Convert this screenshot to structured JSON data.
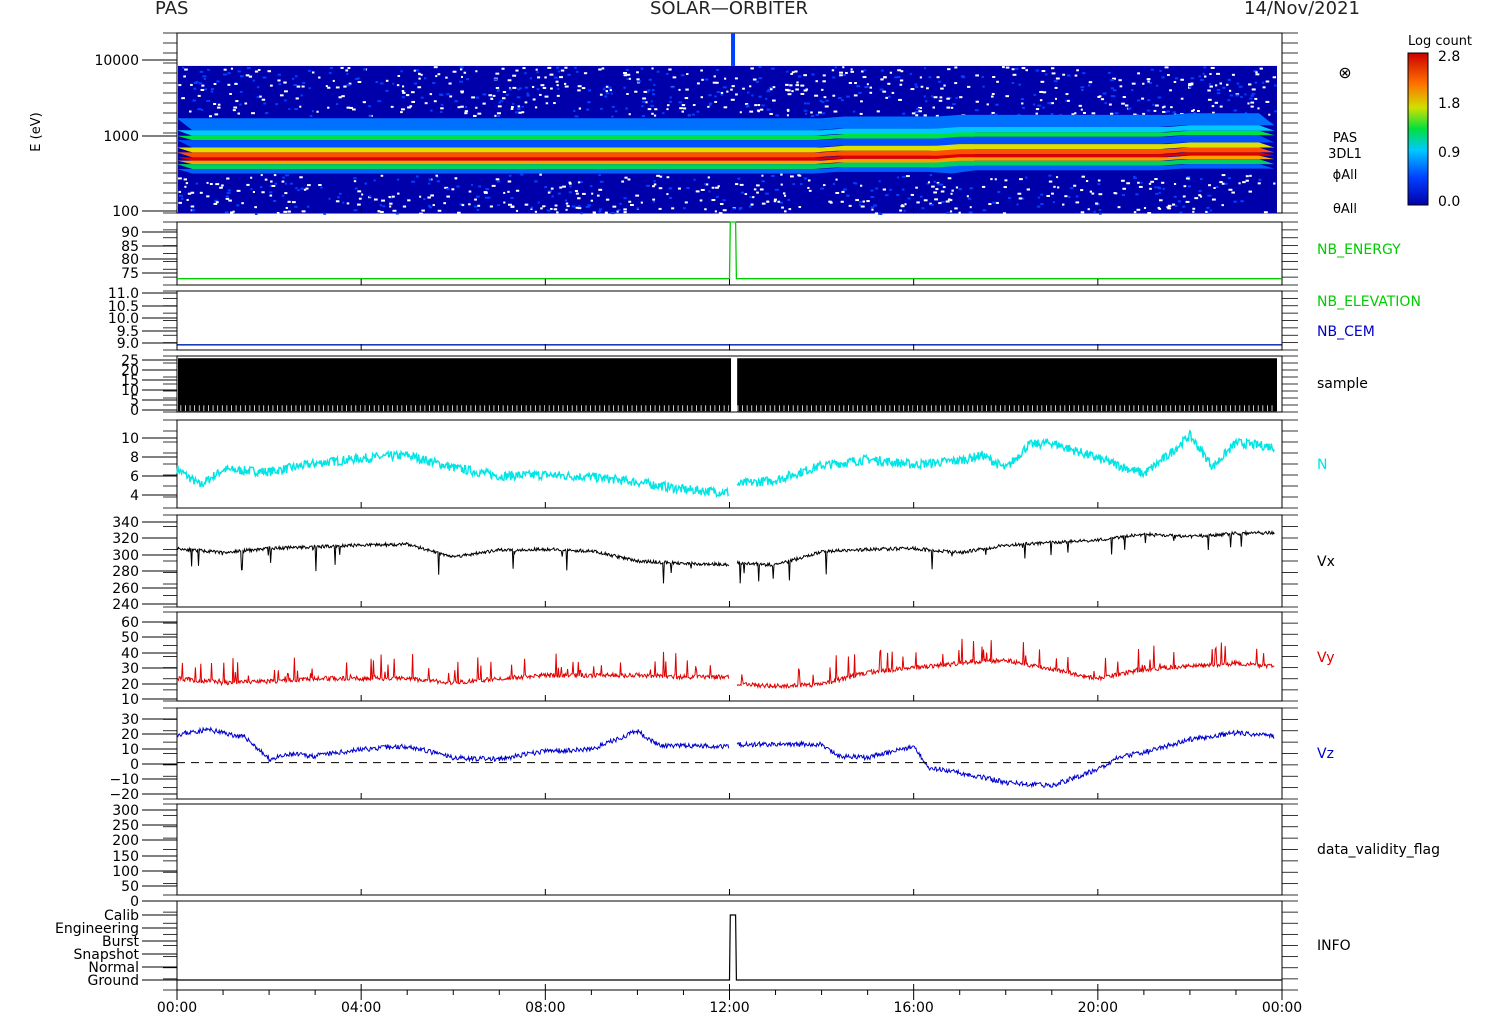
{
  "header": {
    "instrument": "PAS",
    "mission": "SOLAR—ORBITER",
    "date": "14/Nov/2021"
  },
  "colorbar": {
    "title": "Log count",
    "ticks": [
      "2.8",
      "1.8",
      "0.9",
      "0.0"
    ],
    "range": [
      0.0,
      2.8
    ]
  },
  "chart_data": [
    {
      "type": "heatmap",
      "ylabel": "E (eV)",
      "yscale": "log",
      "ylim": [
        100,
        15000
      ],
      "yticks": [
        "10000",
        "1000",
        "100"
      ],
      "labels": [
        "PAS",
        "3DL1",
        "ϕAll",
        "θAll"
      ],
      "symbol": "⊗",
      "note": "energy spectrogram; dense band around 400–1000 eV peaking near 500 eV"
    },
    {
      "type": "line",
      "ylim": [
        72,
        92
      ],
      "yticks": [
        "90",
        "85",
        "80",
        "75"
      ],
      "series": [
        {
          "name": "NB_ENERGY",
          "color": "#00cc00",
          "x": [
            "00:00",
            "12:00",
            "12:01",
            "12:08",
            "12:09",
            "24:00"
          ],
          "values": [
            74,
            74,
            92,
            92,
            74,
            74
          ]
        }
      ]
    },
    {
      "type": "line",
      "ylim": [
        8.8,
        11.1
      ],
      "yticks": [
        "11.0",
        "10.5",
        "10.0",
        "9.5",
        "9.0"
      ],
      "series": [
        {
          "name": "NB_ELEVATION",
          "color": "#00cc00",
          "x": [
            "00:00",
            "24:00"
          ],
          "values": [
            9.0,
            9.0
          ]
        },
        {
          "name": "NB_CEM",
          "color": "#0000cc",
          "x": [
            "00:00",
            "24:00"
          ],
          "values": [
            9.0,
            9.0
          ]
        }
      ]
    },
    {
      "type": "line",
      "ylim": [
        0,
        25
      ],
      "yticks": [
        "25",
        "20",
        "15",
        "10",
        "5",
        "0"
      ],
      "series": [
        {
          "name": "sample",
          "color": "#000000",
          "note": "dense oscillation between 0 and 24, gap at about 12:00–12:08",
          "values": [
            0,
            24
          ]
        }
      ]
    },
    {
      "type": "line",
      "ylim": [
        2.5,
        11
      ],
      "yticks": [
        "10",
        "8",
        "6",
        "4"
      ],
      "series": [
        {
          "name": "N",
          "color": "#00e5e5",
          "x": [
            "00:00",
            "00:30",
            "01:00",
            "02:00",
            "03:00",
            "04:00",
            "05:00",
            "06:00",
            "07:00",
            "08:00",
            "09:00",
            "10:00",
            "11:00",
            "12:00",
            "12:10",
            "13:00",
            "14:00",
            "15:00",
            "16:00",
            "17:00",
            "17:30",
            "18:00",
            "18:30",
            "19:00",
            "20:00",
            "21:00",
            "21:30",
            "22:00",
            "22:30",
            "23:00",
            "23:50"
          ],
          "values": [
            6.3,
            4.7,
            6.2,
            6.0,
            6.8,
            7.3,
            7.6,
            6.4,
            5.6,
            5.7,
            5.5,
            5.0,
            4.3,
            4.0,
            4.8,
            5.2,
            6.6,
            7.2,
            6.7,
            7.1,
            7.6,
            6.3,
            8.6,
            8.8,
            7.3,
            5.8,
            7.5,
            9.5,
            6.5,
            8.8,
            8.4
          ]
        }
      ]
    },
    {
      "type": "line",
      "ylim": [
        235,
        345
      ],
      "yticks": [
        "340",
        "320",
        "300",
        "280",
        "260",
        "240"
      ],
      "series": [
        {
          "name": "Vx",
          "color": "#000000",
          "x": [
            "00:00",
            "01:00",
            "02:00",
            "03:00",
            "04:00",
            "05:00",
            "06:00",
            "07:00",
            "08:00",
            "09:00",
            "10:00",
            "11:00",
            "12:00",
            "12:10",
            "13:00",
            "14:00",
            "15:00",
            "16:00",
            "17:00",
            "18:00",
            "19:00",
            "20:00",
            "21:00",
            "22:00",
            "23:00",
            "23:50"
          ],
          "values": [
            305,
            300,
            305,
            307,
            309,
            310,
            295,
            303,
            304,
            302,
            290,
            287,
            286,
            288,
            285,
            301,
            304,
            305,
            300,
            309,
            312,
            315,
            322,
            319,
            323,
            324
          ]
        }
      ]
    },
    {
      "type": "line",
      "ylim": [
        5,
        64
      ],
      "yticks": [
        "60",
        "50",
        "40",
        "30",
        "20",
        "10"
      ],
      "series": [
        {
          "name": "Vy",
          "color": "#e00000",
          "x": [
            "00:00",
            "01:00",
            "02:00",
            "03:00",
            "04:00",
            "05:00",
            "06:00",
            "07:00",
            "08:00",
            "09:00",
            "10:00",
            "11:00",
            "12:00",
            "12:10",
            "13:00",
            "14:00",
            "15:00",
            "16:00",
            "17:00",
            "18:00",
            "19:00",
            "20:00",
            "21:00",
            "22:00",
            "23:00",
            "23:50"
          ],
          "values": [
            20,
            17,
            18,
            20,
            20,
            20,
            17,
            20,
            22,
            22,
            22,
            21,
            21,
            16,
            15,
            16,
            24,
            27,
            30,
            32,
            26,
            20,
            26,
            28,
            30,
            28
          ]
        }
      ]
    },
    {
      "type": "line",
      "ylim": [
        -22,
        33
      ],
      "yticks": [
        "30",
        "20",
        "10",
        "0",
        "−10",
        "−20"
      ],
      "zero_line": "dashed",
      "series": [
        {
          "name": "Vz",
          "color": "#0000cc",
          "x": [
            "00:00",
            "00:40",
            "01:30",
            "02:00",
            "02:30",
            "03:00",
            "04:00",
            "05:00",
            "06:00",
            "07:00",
            "08:00",
            "09:00",
            "10:00",
            "10:30",
            "11:00",
            "12:00",
            "12:10",
            "13:00",
            "14:00",
            "14:20",
            "15:00",
            "16:00",
            "16:20",
            "17:00",
            "18:00",
            "19:00",
            "20:00",
            "20:30",
            "21:00",
            "22:00",
            "22:30",
            "23:00",
            "23:50"
          ],
          "values": [
            17,
            20,
            15,
            2,
            5,
            4,
            8,
            10,
            3,
            2,
            7,
            8,
            19,
            10,
            10,
            10,
            11,
            11,
            11,
            4,
            3,
            10,
            -3,
            -6,
            -12,
            -14,
            -4,
            4,
            6,
            14,
            16,
            18,
            16
          ]
        }
      ]
    },
    {
      "type": "line",
      "ylim": [
        -15,
        310
      ],
      "yticks": [
        "300",
        "250",
        "200",
        "150",
        "100",
        "50",
        "0"
      ],
      "series": [
        {
          "name": "data_validity_flag",
          "color": "#000000",
          "values": []
        }
      ]
    },
    {
      "type": "line",
      "yticks": [
        "Calib",
        "Engineering",
        "Burst",
        "Snapshot",
        "Normal",
        "Ground"
      ],
      "series": [
        {
          "name": "INFO",
          "color": "#000000",
          "x": [
            "00:00",
            "12:00",
            "12:01",
            "12:08",
            "12:09",
            "24:00"
          ],
          "values": [
            "Ground",
            "Ground",
            "Calib",
            "Calib",
            "Ground",
            "Ground"
          ]
        }
      ]
    }
  ],
  "xaxis": {
    "ticks": [
      "00:00",
      "04:00",
      "08:00",
      "12:00",
      "16:00",
      "20:00",
      "00:00"
    ]
  }
}
